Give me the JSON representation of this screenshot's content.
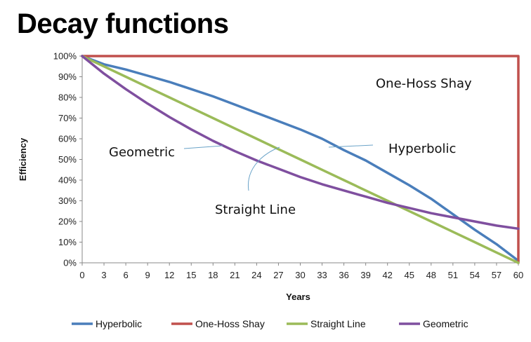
{
  "title": "Decay functions",
  "chart_data": {
    "type": "line",
    "xlabel": "Years",
    "ylabel": "Efficiency",
    "xlim": [
      0,
      60
    ],
    "ylim": [
      0,
      100
    ],
    "x_ticks": [
      0,
      3,
      6,
      9,
      12,
      15,
      18,
      21,
      24,
      27,
      30,
      33,
      36,
      39,
      42,
      45,
      48,
      51,
      54,
      57,
      60
    ],
    "y_ticks": [
      "0%",
      "10%",
      "20%",
      "30%",
      "40%",
      "50%",
      "60%",
      "70%",
      "80%",
      "90%",
      "100%"
    ],
    "y_tick_values": [
      0,
      10,
      20,
      30,
      40,
      50,
      60,
      70,
      80,
      90,
      100
    ],
    "grid": false,
    "legend_position": "bottom",
    "x": [
      0,
      3,
      6,
      9,
      12,
      15,
      18,
      21,
      24,
      27,
      30,
      33,
      36,
      39,
      42,
      45,
      48,
      51,
      54,
      57,
      60
    ],
    "series": [
      {
        "name": "Hyperbolic",
        "color": "#4a7ebb",
        "values": [
          100,
          96,
          93.5,
          90.5,
          87.5,
          84,
          80.5,
          76.5,
          72.5,
          68.5,
          64.5,
          60,
          54.5,
          49.5,
          43.5,
          37.5,
          31,
          23.5,
          16,
          9,
          1
        ]
      },
      {
        "name": "One-Hoss Shay",
        "color": "#c0504d",
        "x": [
          0,
          60,
          60
        ],
        "values": [
          100,
          100,
          0
        ]
      },
      {
        "name": "Straight Line",
        "color": "#9bbb59",
        "values": [
          100,
          95,
          90,
          85,
          80,
          75,
          70,
          65,
          60,
          55,
          50,
          45,
          40,
          35,
          30,
          25,
          20,
          15,
          10,
          5,
          0
        ]
      },
      {
        "name": "Geometric",
        "color": "#7f4f9f",
        "values": [
          100,
          91.5,
          84,
          77,
          70.5,
          64.5,
          59,
          54,
          49.5,
          45.5,
          41.5,
          38,
          35,
          32,
          29,
          26.5,
          24,
          22,
          20,
          18,
          16.5
        ]
      }
    ],
    "annotations": [
      {
        "text": "One-Hoss Shay"
      },
      {
        "text": "Hyperbolic"
      },
      {
        "text": "Geometric"
      },
      {
        "text": "Straight Line"
      }
    ]
  }
}
